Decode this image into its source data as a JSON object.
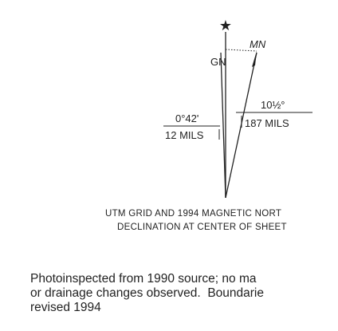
{
  "diagram": {
    "true_north": "★",
    "grid_north_label": "GN",
    "magnetic_north_label": "MN",
    "grid_angle": "0°42'",
    "grid_mils": "12 MILS",
    "magnetic_angle": "10½°",
    "magnetic_mils": "187 MILS",
    "caption": [
      "UTM GRID AND 1994 MAGNETIC NORT",
      "DECLINATION AT CENTER OF SHEET"
    ]
  },
  "note": [
    "Photoinspected from 1990 source; no ma",
    "or drainage changes observed.  Boundarie",
    "revised 1994"
  ]
}
